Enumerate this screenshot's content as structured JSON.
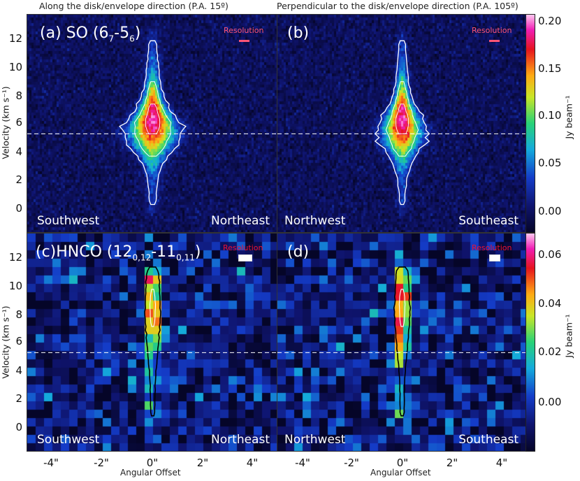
{
  "col_titles": {
    "left": "Along the disk/envelope direction (P.A. 15º)",
    "right": "Perpendicular to the disk/envelope direction (P.A. 105º)"
  },
  "panels": [
    {
      "id": "a",
      "label_main": "(a) SO (6",
      "label_sub1": "7",
      "label_mid": "-5",
      "label_sub2": "6",
      "label_end": ")",
      "resolution": "Resolution",
      "corner_left": "Southwest",
      "corner_right": "Northeast"
    },
    {
      "id": "b",
      "label_main": "(b)",
      "resolution": "Resolution",
      "corner_left": "Northwest",
      "corner_right": "Southeast"
    },
    {
      "id": "c",
      "label_main": "(c)HNCO (12",
      "label_sub1": "0,12",
      "label_mid": "-11",
      "label_sub2": "0,11",
      "label_end": ")",
      "resolution": "Resolution",
      "corner_left": "Southwest",
      "corner_right": "Northeast"
    },
    {
      "id": "d",
      "label_main": "(d)",
      "resolution": "Resolution",
      "corner_left": "Northwest",
      "corner_right": "Southeast"
    }
  ],
  "axes": {
    "ylabel_top": "Velocity (km s⁻¹)",
    "ylabel_bottom": "Velocity (km s⁻¹)",
    "xlabel": "Angular Offset",
    "y_ticks": [
      "12",
      "10",
      "8",
      "6",
      "4",
      "2",
      "0"
    ],
    "x_ticks": [
      "-4\"",
      "-2\"",
      "0\"",
      "2\"",
      "4\""
    ]
  },
  "colorbars": [
    {
      "label": "Jy beam⁻¹",
      "ticks": [
        "0.20",
        "0.15",
        "0.10",
        "0.05",
        "0.00"
      ]
    },
    {
      "label": "Jy beam⁻¹",
      "ticks": [
        "0.06",
        "0.04",
        "0.02",
        "0.00"
      ]
    }
  ],
  "colors": {
    "resolution_top": "#ff5577",
    "resolution_bottom": "#ee1133",
    "dashed_line": "#ffffff"
  },
  "chart_data": [
    {
      "type": "heatmap",
      "panel": "a",
      "molecule": "SO (6_7-5_6)",
      "x_range": [
        -5,
        5
      ],
      "y_range": [
        -1.2,
        13.5
      ],
      "x_unit": "arcsec",
      "y_unit": "km s^-1",
      "systemic_velocity": 5.5,
      "emission_velocity_range": [
        -0.5,
        13
      ],
      "peak_velocity": 6.5,
      "cmap_range": [
        -0.02,
        0.21
      ],
      "peak_intensity": 0.2,
      "peak_offset": 0.0
    },
    {
      "type": "heatmap",
      "panel": "b",
      "molecule": "SO (6_7-5_6)",
      "x_range": [
        -5,
        5
      ],
      "y_range": [
        -1.2,
        13.5
      ],
      "x_unit": "arcsec",
      "y_unit": "km s^-1",
      "systemic_velocity": 5.5,
      "emission_velocity_range": [
        -0.5,
        13
      ],
      "peak_velocity": 6.5,
      "cmap_range": [
        -0.02,
        0.21
      ],
      "peak_intensity": 0.2,
      "peak_offset": 0.0
    },
    {
      "type": "heatmap",
      "panel": "c",
      "molecule": "HNCO (12_0,12-11_0,11)",
      "x_range": [
        -5,
        5
      ],
      "y_range": [
        -1.2,
        13.5
      ],
      "x_unit": "arcsec",
      "y_unit": "km s^-1",
      "systemic_velocity": 5.5,
      "emission_velocity_range": [
        0.5,
        11.8
      ],
      "peak_velocity": 8.5,
      "cmap_range": [
        -0.01,
        0.067
      ],
      "peak_intensity": 0.065,
      "peak_offset": 0.0
    },
    {
      "type": "heatmap",
      "panel": "d",
      "molecule": "HNCO (12_0,12-11_0,11)",
      "x_range": [
        -5,
        5
      ],
      "y_range": [
        -1.2,
        13.5
      ],
      "x_unit": "arcsec",
      "y_unit": "km s^-1",
      "systemic_velocity": 5.5,
      "emission_velocity_range": [
        0.5,
        11.8
      ],
      "peak_velocity": 8.5,
      "cmap_range": [
        -0.01,
        0.067
      ],
      "peak_intensity": 0.065,
      "peak_offset": 0.0
    }
  ]
}
